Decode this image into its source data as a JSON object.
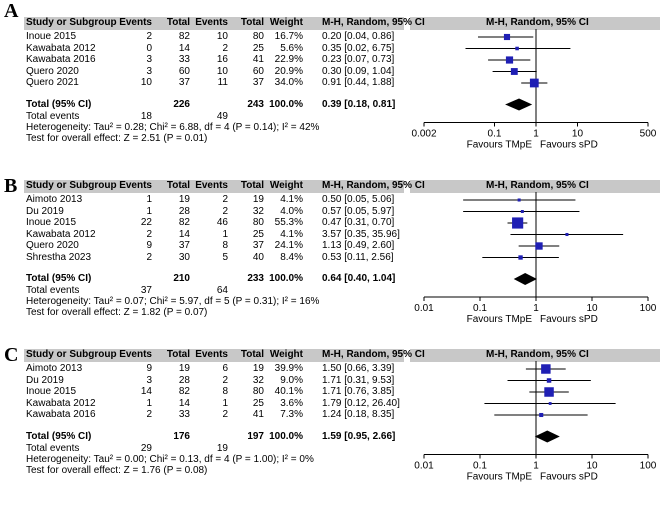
{
  "panels": [
    {
      "label": "A",
      "headers": [
        "Study or Subgroup",
        "Events",
        "Total",
        "Events",
        "Total",
        "Weight",
        "M-H, Random, 95% CI",
        "M-H, Random, 95% CI"
      ],
      "rows": [
        {
          "study": "Inoue 2015",
          "e1": "2",
          "t1": "82",
          "e2": "10",
          "t2": "80",
          "weight": "16.7%",
          "ci": "0.20 [0.04, 0.86]",
          "est": 0.2,
          "lo": 0.04,
          "hi": 0.86,
          "w": 16.7
        },
        {
          "study": "Kawabata 2012",
          "e1": "0",
          "t1": "14",
          "e2": "2",
          "t2": "25",
          "weight": "5.6%",
          "ci": "0.35 [0.02, 6.75]",
          "est": 0.35,
          "lo": 0.02,
          "hi": 6.75,
          "w": 5.6
        },
        {
          "study": "Kawabata 2016",
          "e1": "3",
          "t1": "33",
          "e2": "16",
          "t2": "41",
          "weight": "22.9%",
          "ci": "0.23 [0.07, 0.73]",
          "est": 0.23,
          "lo": 0.07,
          "hi": 0.73,
          "w": 22.9
        },
        {
          "study": "Quero 2020",
          "e1": "3",
          "t1": "60",
          "e2": "10",
          "t2": "60",
          "weight": "20.9%",
          "ci": "0.30 [0.09, 1.04]",
          "est": 0.3,
          "lo": 0.09,
          "hi": 1.04,
          "w": 20.9
        },
        {
          "study": "Quero 2021",
          "e1": "10",
          "t1": "37",
          "e2": "11",
          "t2": "37",
          "weight": "34.0%",
          "ci": "0.91 [0.44, 1.88]",
          "est": 0.91,
          "lo": 0.44,
          "hi": 1.88,
          "w": 34.0
        }
      ],
      "total": {
        "label": "Total (95% CI)",
        "t1": "226",
        "t2": "243",
        "weight": "100.0%",
        "ci": "0.39 [0.18, 0.81]",
        "est": 0.39,
        "lo": 0.18,
        "hi": 0.81
      },
      "total_events": {
        "label": "Total events",
        "e1": "18",
        "e2": "49"
      },
      "heterogeneity": "Heterogeneity: Tau² = 0.28; Chi² = 6.88, df = 4 (P = 0.14); I² = 42%",
      "overall": "Test for overall effect: Z = 2.51 (P = 0.01)",
      "axis": {
        "ticks": [
          "0.002",
          "0.1",
          "1",
          "10",
          "500"
        ],
        "tick_values": [
          0.002,
          0.1,
          1,
          10,
          500
        ],
        "left_label": "Favours TMpE",
        "right_label": "Favours sPD"
      }
    },
    {
      "label": "B",
      "headers": [
        "Study or Subgroup",
        "Events",
        "Total",
        "Events",
        "Total",
        "Weight",
        "M-H, Random, 95% CI",
        "M-H, Random, 95% CI"
      ],
      "rows": [
        {
          "study": "Aimoto 2013",
          "e1": "1",
          "t1": "19",
          "e2": "2",
          "t2": "19",
          "weight": "4.1%",
          "ci": "0.50 [0.05, 5.06]",
          "est": 0.5,
          "lo": 0.05,
          "hi": 5.06,
          "w": 4.1
        },
        {
          "study": "Du 2019",
          "e1": "1",
          "t1": "28",
          "e2": "2",
          "t2": "32",
          "weight": "4.0%",
          "ci": "0.57 [0.05, 5.97]",
          "est": 0.57,
          "lo": 0.05,
          "hi": 5.97,
          "w": 4.0
        },
        {
          "study": "Inoue 2015",
          "e1": "22",
          "t1": "82",
          "e2": "46",
          "t2": "80",
          "weight": "55.3%",
          "ci": "0.47 [0.31, 0.70]",
          "est": 0.47,
          "lo": 0.31,
          "hi": 0.7,
          "w": 55.3
        },
        {
          "study": "Kawabata 2012",
          "e1": "2",
          "t1": "14",
          "e2": "1",
          "t2": "25",
          "weight": "4.1%",
          "ci": "3.57 [0.35, 35.96]",
          "est": 3.57,
          "lo": 0.35,
          "hi": 35.96,
          "w": 4.1
        },
        {
          "study": "Quero 2020",
          "e1": "9",
          "t1": "37",
          "e2": "8",
          "t2": "37",
          "weight": "24.1%",
          "ci": "1.13 [0.49, 2.60]",
          "est": 1.13,
          "lo": 0.49,
          "hi": 2.6,
          "w": 24.1
        },
        {
          "study": "Shrestha 2023",
          "e1": "2",
          "t1": "30",
          "e2": "5",
          "t2": "40",
          "weight": "8.4%",
          "ci": "0.53 [0.11, 2.56]",
          "est": 0.53,
          "lo": 0.11,
          "hi": 2.56,
          "w": 8.4
        }
      ],
      "total": {
        "label": "Total (95% CI)",
        "t1": "210",
        "t2": "233",
        "weight": "100.0%",
        "ci": "0.64 [0.40, 1.04]",
        "est": 0.64,
        "lo": 0.4,
        "hi": 1.04
      },
      "total_events": {
        "label": "Total events",
        "e1": "37",
        "e2": "64"
      },
      "heterogeneity": "Heterogeneity: Tau² = 0.07; Chi² = 5.97, df = 5 (P = 0.31); I² = 16%",
      "overall": "Test for overall effect: Z = 1.82 (P = 0.07)",
      "axis": {
        "ticks": [
          "0.01",
          "0.1",
          "1",
          "10",
          "100"
        ],
        "tick_values": [
          0.01,
          0.1,
          1,
          10,
          100
        ],
        "left_label": "Favours TMpE",
        "right_label": "Favours sPD"
      }
    },
    {
      "label": "C",
      "headers": [
        "Study or Subgroup",
        "Events",
        "Total",
        "Events",
        "Total",
        "Weight",
        "M-H, Random, 95% CI",
        "M-H, Random, 95% CI"
      ],
      "rows": [
        {
          "study": "Aimoto 2013",
          "e1": "9",
          "t1": "19",
          "e2": "6",
          "t2": "19",
          "weight": "39.9%",
          "ci": "1.50 [0.66, 3.39]",
          "est": 1.5,
          "lo": 0.66,
          "hi": 3.39,
          "w": 39.9
        },
        {
          "study": "Du 2019",
          "e1": "3",
          "t1": "28",
          "e2": "2",
          "t2": "32",
          "weight": "9.0%",
          "ci": "1.71 [0.31, 9.53]",
          "est": 1.71,
          "lo": 0.31,
          "hi": 9.53,
          "w": 9.0
        },
        {
          "study": "Inoue 2015",
          "e1": "14",
          "t1": "82",
          "e2": "8",
          "t2": "80",
          "weight": "40.1%",
          "ci": "1.71 [0.76, 3.85]",
          "est": 1.71,
          "lo": 0.76,
          "hi": 3.85,
          "w": 40.1
        },
        {
          "study": "Kawabata 2012",
          "e1": "1",
          "t1": "14",
          "e2": "1",
          "t2": "25",
          "weight": "3.6%",
          "ci": "1.79 [0.12, 26.40]",
          "est": 1.79,
          "lo": 0.12,
          "hi": 26.4,
          "w": 3.6
        },
        {
          "study": "Kawabata 2016",
          "e1": "2",
          "t1": "33",
          "e2": "2",
          "t2": "41",
          "weight": "7.3%",
          "ci": "1.24 [0.18, 8.35]",
          "est": 1.24,
          "lo": 0.18,
          "hi": 8.35,
          "w": 7.3
        }
      ],
      "total": {
        "label": "Total (95% CI)",
        "t1": "176",
        "t2": "197",
        "weight": "100.0%",
        "ci": "1.59 [0.95, 2.66]",
        "est": 1.59,
        "lo": 0.95,
        "hi": 2.66
      },
      "total_events": {
        "label": "Total events",
        "e1": "29",
        "e2": "19"
      },
      "heterogeneity": "Heterogeneity: Tau² = 0.00; Chi² = 0.13, df = 4 (P = 1.00); I² = 0%",
      "overall": "Test for overall effect: Z = 1.76 (P = 0.08)",
      "axis": {
        "ticks": [
          "0.01",
          "0.1",
          "1",
          "10",
          "100"
        ],
        "tick_values": [
          0.01,
          0.1,
          1,
          10,
          100
        ],
        "left_label": "Favours TMpE",
        "right_label": "Favours sPD"
      }
    }
  ],
  "colors": {
    "header_bg": "#c8c8c8",
    "marker": "#1f1fb4",
    "diamond": "#000000"
  }
}
